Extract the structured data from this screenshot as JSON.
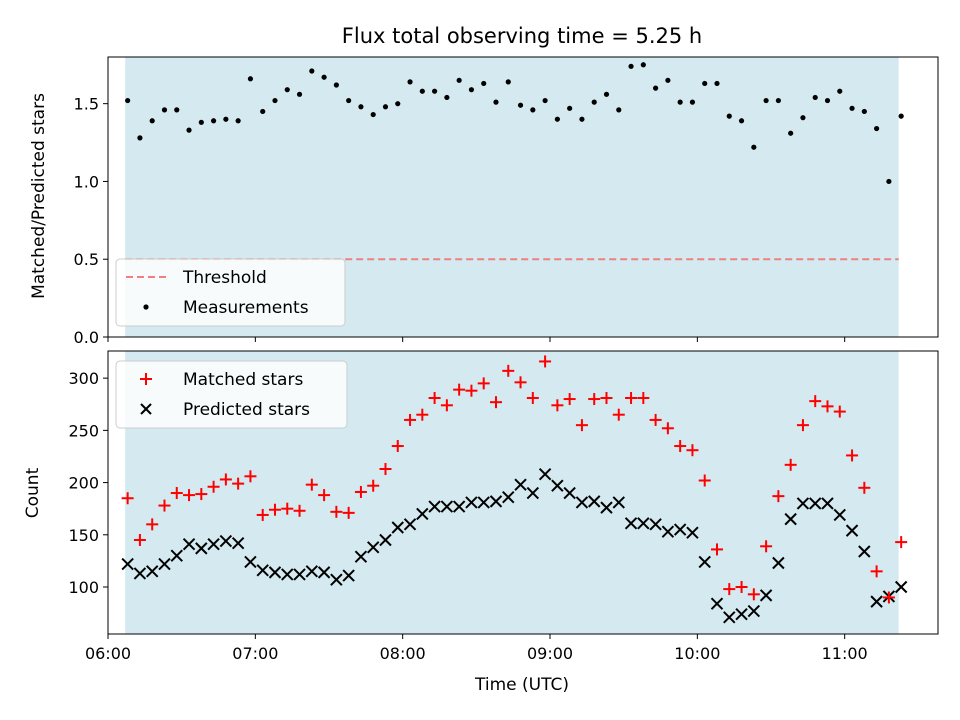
{
  "chart_data": [
    {
      "type": "scatter",
      "title": "Flux total observing time = 5.25 h",
      "xlabel": "",
      "ylabel": "Matched/Predicted stars",
      "ylim": [
        0,
        1.8
      ],
      "yticks": [
        "0.0",
        "0.5",
        "1.0",
        "1.5"
      ],
      "shaded_span": {
        "x_start": "06:07",
        "x_end": "11:22",
        "color": "#d4eaf0"
      },
      "threshold": {
        "name": "Threshold",
        "value": 0.5,
        "color": "#f08080",
        "style": "dashed"
      },
      "legend": {
        "position": "lower-left",
        "entries": [
          "Threshold",
          "Measurements"
        ]
      },
      "series": [
        {
          "name": "Measurements",
          "color": "#000000",
          "x": [
            "06:08",
            "06:13",
            "06:18",
            "06:23",
            "06:28",
            "06:33",
            "06:38",
            "06:43",
            "06:48",
            "06:53",
            "06:58",
            "07:03",
            "07:08",
            "07:13",
            "07:18",
            "07:23",
            "07:28",
            "07:33",
            "07:38",
            "07:43",
            "07:48",
            "07:53",
            "07:58",
            "08:03",
            "08:08",
            "08:13",
            "08:18",
            "08:23",
            "08:28",
            "08:33",
            "08:38",
            "08:43",
            "08:48",
            "08:53",
            "08:58",
            "09:03",
            "09:08",
            "09:13",
            "09:18",
            "09:23",
            "09:28",
            "09:33",
            "09:38",
            "09:43",
            "09:48",
            "09:53",
            "09:58",
            "10:03",
            "10:08",
            "10:13",
            "10:18",
            "10:23",
            "10:28",
            "10:33",
            "10:38",
            "10:43",
            "10:48",
            "10:53",
            "10:58",
            "11:03",
            "11:08",
            "11:13",
            "11:18",
            "11:23"
          ],
          "y": [
            1.52,
            1.28,
            1.39,
            1.46,
            1.46,
            1.33,
            1.38,
            1.39,
            1.4,
            1.39,
            1.66,
            1.45,
            1.52,
            1.59,
            1.56,
            1.71,
            1.67,
            1.62,
            1.52,
            1.48,
            1.43,
            1.48,
            1.5,
            1.64,
            1.58,
            1.58,
            1.54,
            1.65,
            1.59,
            1.63,
            1.51,
            1.64,
            1.49,
            1.46,
            1.52,
            1.4,
            1.47,
            1.4,
            1.51,
            1.56,
            1.46,
            1.74,
            1.75,
            1.6,
            1.65,
            1.51,
            1.51,
            1.63,
            1.63,
            1.42,
            1.39,
            1.22,
            1.52,
            1.52,
            1.31,
            1.41,
            1.54,
            1.52,
            1.58,
            1.47,
            1.45,
            1.34,
            1.0,
            1.42
          ]
        }
      ]
    },
    {
      "type": "scatter",
      "title": "",
      "xlabel": "Time (UTC)",
      "ylabel": "Count",
      "ylim": [
        55,
        326
      ],
      "yticks": [
        "100",
        "150",
        "200",
        "250",
        "300"
      ],
      "xticks": [
        "06:00",
        "07:00",
        "08:00",
        "09:00",
        "10:00",
        "11:00"
      ],
      "shaded_span": {
        "x_start": "06:07",
        "x_end": "11:22",
        "color": "#d4eaf0"
      },
      "legend": {
        "position": "upper-left",
        "entries": [
          "Matched stars",
          "Predicted stars"
        ]
      },
      "x": [
        "06:08",
        "06:13",
        "06:18",
        "06:23",
        "06:28",
        "06:33",
        "06:38",
        "06:43",
        "06:48",
        "06:53",
        "06:58",
        "07:03",
        "07:08",
        "07:13",
        "07:18",
        "07:23",
        "07:28",
        "07:33",
        "07:38",
        "07:43",
        "07:48",
        "07:53",
        "07:58",
        "08:03",
        "08:08",
        "08:13",
        "08:18",
        "08:23",
        "08:28",
        "08:33",
        "08:38",
        "08:43",
        "08:48",
        "08:53",
        "08:58",
        "09:03",
        "09:08",
        "09:13",
        "09:18",
        "09:23",
        "09:28",
        "09:33",
        "09:38",
        "09:43",
        "09:48",
        "09:53",
        "09:58",
        "10:03",
        "10:08",
        "10:13",
        "10:18",
        "10:23",
        "10:28",
        "10:33",
        "10:38",
        "10:43",
        "10:48",
        "10:53",
        "10:58",
        "11:03",
        "11:08",
        "11:13",
        "11:18",
        "11:23"
      ],
      "series": [
        {
          "name": "Matched stars",
          "color": "#ff0000",
          "marker": "plus",
          "values": [
            185,
            145,
            160,
            178,
            190,
            188,
            189,
            196,
            203,
            199,
            206,
            169,
            174,
            175,
            173,
            198,
            188,
            172,
            171,
            191,
            197,
            213,
            235,
            260,
            265,
            281,
            274,
            289,
            288,
            295,
            277,
            307,
            296,
            281,
            316,
            274,
            280,
            255,
            280,
            281,
            265,
            281,
            281,
            260,
            252,
            235,
            231,
            202,
            136,
            98,
            100,
            93,
            139,
            187,
            217,
            255,
            278,
            273,
            268,
            226,
            195,
            115,
            90,
            143
          ]
        },
        {
          "name": "Predicted stars",
          "color": "#000000",
          "marker": "x",
          "values": [
            122,
            113,
            115,
            122,
            130,
            141,
            137,
            141,
            144,
            142,
            124,
            116,
            114,
            112,
            112,
            115,
            114,
            107,
            111,
            129,
            138,
            145,
            157,
            160,
            170,
            177,
            177,
            177,
            181,
            181,
            182,
            186,
            198,
            190,
            208,
            197,
            190,
            181,
            182,
            176,
            181,
            161,
            161,
            160,
            153,
            155,
            152,
            124,
            84,
            71,
            74,
            77,
            92,
            123,
            165,
            180,
            180,
            180,
            169,
            154,
            134,
            86,
            91,
            100
          ]
        }
      ]
    }
  ]
}
